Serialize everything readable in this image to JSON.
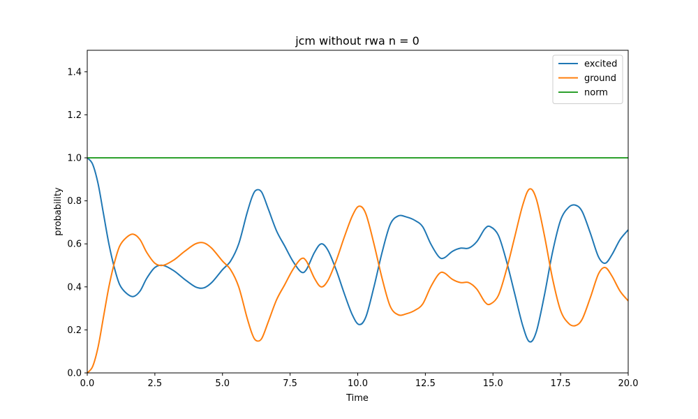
{
  "chart_data": {
    "type": "line",
    "title": "jcm without rwa n = 0",
    "xlabel": "Time",
    "ylabel": "probability",
    "xlim": [
      0,
      20
    ],
    "ylim": [
      0,
      1.5
    ],
    "x_ticks": [
      "0.0",
      "2.5",
      "5.0",
      "7.5",
      "10.0",
      "12.5",
      "15.0",
      "17.5",
      "20.0"
    ],
    "y_ticks": [
      "0.0",
      "0.2",
      "0.4",
      "0.6",
      "0.8",
      "1.0",
      "1.2",
      "1.4"
    ],
    "grid": false,
    "legend_position": "top-right",
    "series": [
      {
        "name": "excited",
        "color": "#1f77b4",
        "points": [
          [
            0.0,
            1.0
          ],
          [
            0.2,
            0.97
          ],
          [
            0.4,
            0.88
          ],
          [
            0.6,
            0.74
          ],
          [
            0.8,
            0.6
          ],
          [
            1.0,
            0.49
          ],
          [
            1.2,
            0.41
          ],
          [
            1.45,
            0.37
          ],
          [
            1.7,
            0.355
          ],
          [
            1.95,
            0.38
          ],
          [
            2.2,
            0.44
          ],
          [
            2.5,
            0.49
          ],
          [
            2.8,
            0.5
          ],
          [
            3.2,
            0.475
          ],
          [
            3.6,
            0.435
          ],
          [
            4.0,
            0.4
          ],
          [
            4.3,
            0.395
          ],
          [
            4.6,
            0.42
          ],
          [
            5.0,
            0.48
          ],
          [
            5.3,
            0.52
          ],
          [
            5.6,
            0.6
          ],
          [
            5.9,
            0.74
          ],
          [
            6.1,
            0.82
          ],
          [
            6.25,
            0.85
          ],
          [
            6.45,
            0.84
          ],
          [
            6.7,
            0.76
          ],
          [
            7.0,
            0.66
          ],
          [
            7.3,
            0.59
          ],
          [
            7.6,
            0.52
          ],
          [
            7.9,
            0.47
          ],
          [
            8.1,
            0.48
          ],
          [
            8.4,
            0.56
          ],
          [
            8.65,
            0.6
          ],
          [
            8.9,
            0.57
          ],
          [
            9.2,
            0.48
          ],
          [
            9.5,
            0.37
          ],
          [
            9.8,
            0.27
          ],
          [
            10.05,
            0.225
          ],
          [
            10.3,
            0.26
          ],
          [
            10.6,
            0.4
          ],
          [
            10.9,
            0.56
          ],
          [
            11.2,
            0.69
          ],
          [
            11.5,
            0.73
          ],
          [
            11.8,
            0.725
          ],
          [
            12.1,
            0.71
          ],
          [
            12.4,
            0.68
          ],
          [
            12.7,
            0.6
          ],
          [
            13.0,
            0.54
          ],
          [
            13.2,
            0.535
          ],
          [
            13.5,
            0.565
          ],
          [
            13.8,
            0.58
          ],
          [
            14.1,
            0.58
          ],
          [
            14.4,
            0.61
          ],
          [
            14.7,
            0.67
          ],
          [
            14.9,
            0.68
          ],
          [
            15.2,
            0.64
          ],
          [
            15.5,
            0.52
          ],
          [
            15.8,
            0.37
          ],
          [
            16.1,
            0.22
          ],
          [
            16.35,
            0.145
          ],
          [
            16.6,
            0.19
          ],
          [
            16.9,
            0.36
          ],
          [
            17.2,
            0.56
          ],
          [
            17.5,
            0.71
          ],
          [
            17.8,
            0.77
          ],
          [
            18.05,
            0.78
          ],
          [
            18.3,
            0.75
          ],
          [
            18.6,
            0.65
          ],
          [
            18.9,
            0.54
          ],
          [
            19.15,
            0.51
          ],
          [
            19.4,
            0.55
          ],
          [
            19.7,
            0.62
          ],
          [
            20.0,
            0.665
          ]
        ]
      },
      {
        "name": "ground",
        "color": "#ff7f0e",
        "points": [
          [
            0.0,
            0.0
          ],
          [
            0.2,
            0.03
          ],
          [
            0.4,
            0.12
          ],
          [
            0.6,
            0.26
          ],
          [
            0.8,
            0.4
          ],
          [
            1.0,
            0.51
          ],
          [
            1.2,
            0.59
          ],
          [
            1.45,
            0.63
          ],
          [
            1.7,
            0.645
          ],
          [
            1.95,
            0.62
          ],
          [
            2.2,
            0.56
          ],
          [
            2.5,
            0.51
          ],
          [
            2.8,
            0.5
          ],
          [
            3.2,
            0.525
          ],
          [
            3.6,
            0.565
          ],
          [
            4.0,
            0.6
          ],
          [
            4.3,
            0.605
          ],
          [
            4.6,
            0.58
          ],
          [
            5.0,
            0.52
          ],
          [
            5.3,
            0.48
          ],
          [
            5.6,
            0.4
          ],
          [
            5.9,
            0.26
          ],
          [
            6.1,
            0.18
          ],
          [
            6.25,
            0.15
          ],
          [
            6.45,
            0.16
          ],
          [
            6.7,
            0.24
          ],
          [
            7.0,
            0.34
          ],
          [
            7.3,
            0.41
          ],
          [
            7.6,
            0.48
          ],
          [
            7.9,
            0.53
          ],
          [
            8.1,
            0.52
          ],
          [
            8.4,
            0.44
          ],
          [
            8.65,
            0.4
          ],
          [
            8.9,
            0.43
          ],
          [
            9.2,
            0.52
          ],
          [
            9.5,
            0.63
          ],
          [
            9.8,
            0.73
          ],
          [
            10.05,
            0.775
          ],
          [
            10.3,
            0.74
          ],
          [
            10.6,
            0.6
          ],
          [
            10.9,
            0.44
          ],
          [
            11.2,
            0.31
          ],
          [
            11.5,
            0.27
          ],
          [
            11.8,
            0.275
          ],
          [
            12.1,
            0.29
          ],
          [
            12.4,
            0.32
          ],
          [
            12.7,
            0.4
          ],
          [
            13.0,
            0.46
          ],
          [
            13.2,
            0.465
          ],
          [
            13.5,
            0.435
          ],
          [
            13.8,
            0.42
          ],
          [
            14.1,
            0.42
          ],
          [
            14.4,
            0.39
          ],
          [
            14.7,
            0.33
          ],
          [
            14.9,
            0.32
          ],
          [
            15.2,
            0.36
          ],
          [
            15.5,
            0.48
          ],
          [
            15.8,
            0.63
          ],
          [
            16.1,
            0.78
          ],
          [
            16.35,
            0.855
          ],
          [
            16.6,
            0.81
          ],
          [
            16.9,
            0.64
          ],
          [
            17.2,
            0.44
          ],
          [
            17.5,
            0.29
          ],
          [
            17.8,
            0.23
          ],
          [
            18.05,
            0.22
          ],
          [
            18.3,
            0.25
          ],
          [
            18.6,
            0.35
          ],
          [
            18.9,
            0.46
          ],
          [
            19.15,
            0.49
          ],
          [
            19.4,
            0.45
          ],
          [
            19.7,
            0.38
          ],
          [
            20.0,
            0.335
          ]
        ]
      },
      {
        "name": "norm",
        "color": "#2ca02c",
        "points": [
          [
            0.0,
            1.0
          ],
          [
            20.0,
            1.0
          ]
        ]
      }
    ]
  }
}
